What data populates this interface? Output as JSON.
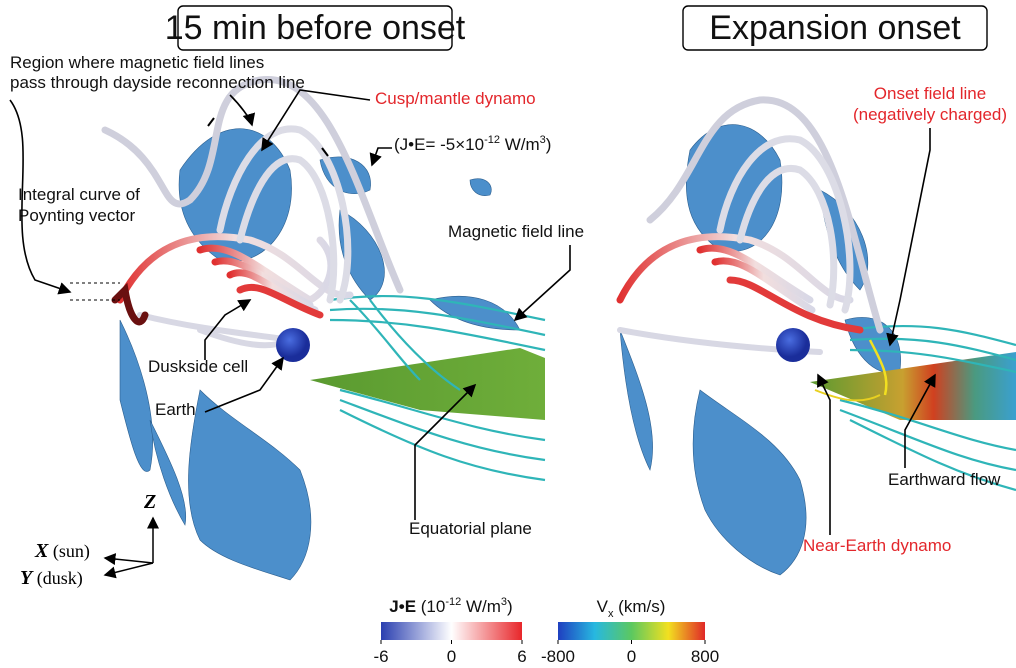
{
  "panels": [
    {
      "title": "15 min before onset"
    },
    {
      "title": "Expansion onset"
    }
  ],
  "annotations": {
    "region": [
      "Region where magnetic field lines",
      "pass through dayside reconnection line"
    ],
    "cusp": "Cusp/mantle dynamo",
    "je": [
      "(J•E= -5×10",
      "-12",
      " W/m",
      "3",
      ")"
    ],
    "integral": [
      "Integral curve of",
      "Poynting vector"
    ],
    "field_line": "Magnetic field line",
    "dusk_cell": "Duskside cell",
    "earth": "Earth",
    "equatorial": "Equatorial plane",
    "onset": [
      "Onset field line",
      "(negatively charged)"
    ],
    "earthward": "Earthward flow",
    "near_earth": "Near-Earth dynamo"
  },
  "axes": {
    "z": "Z",
    "x": "X",
    "x_note": "(sun)",
    "y": "Y",
    "y_note": "(dusk)"
  },
  "colorbars": [
    {
      "title": [
        "J•E",
        " (10",
        "-12",
        " W/m",
        "3",
        ")"
      ],
      "ticks": [
        -6,
        0,
        6
      ],
      "colors": [
        "#2a3fb0",
        "#ffffff",
        "#e8262a"
      ]
    },
    {
      "title": [
        "V",
        "x",
        " (km/s)"
      ],
      "ticks": [
        -800,
        0,
        800
      ],
      "colors": [
        "#1f3fc0",
        "#27b8e0",
        "#5cc860",
        "#f2e020",
        "#e02828"
      ]
    }
  ]
}
